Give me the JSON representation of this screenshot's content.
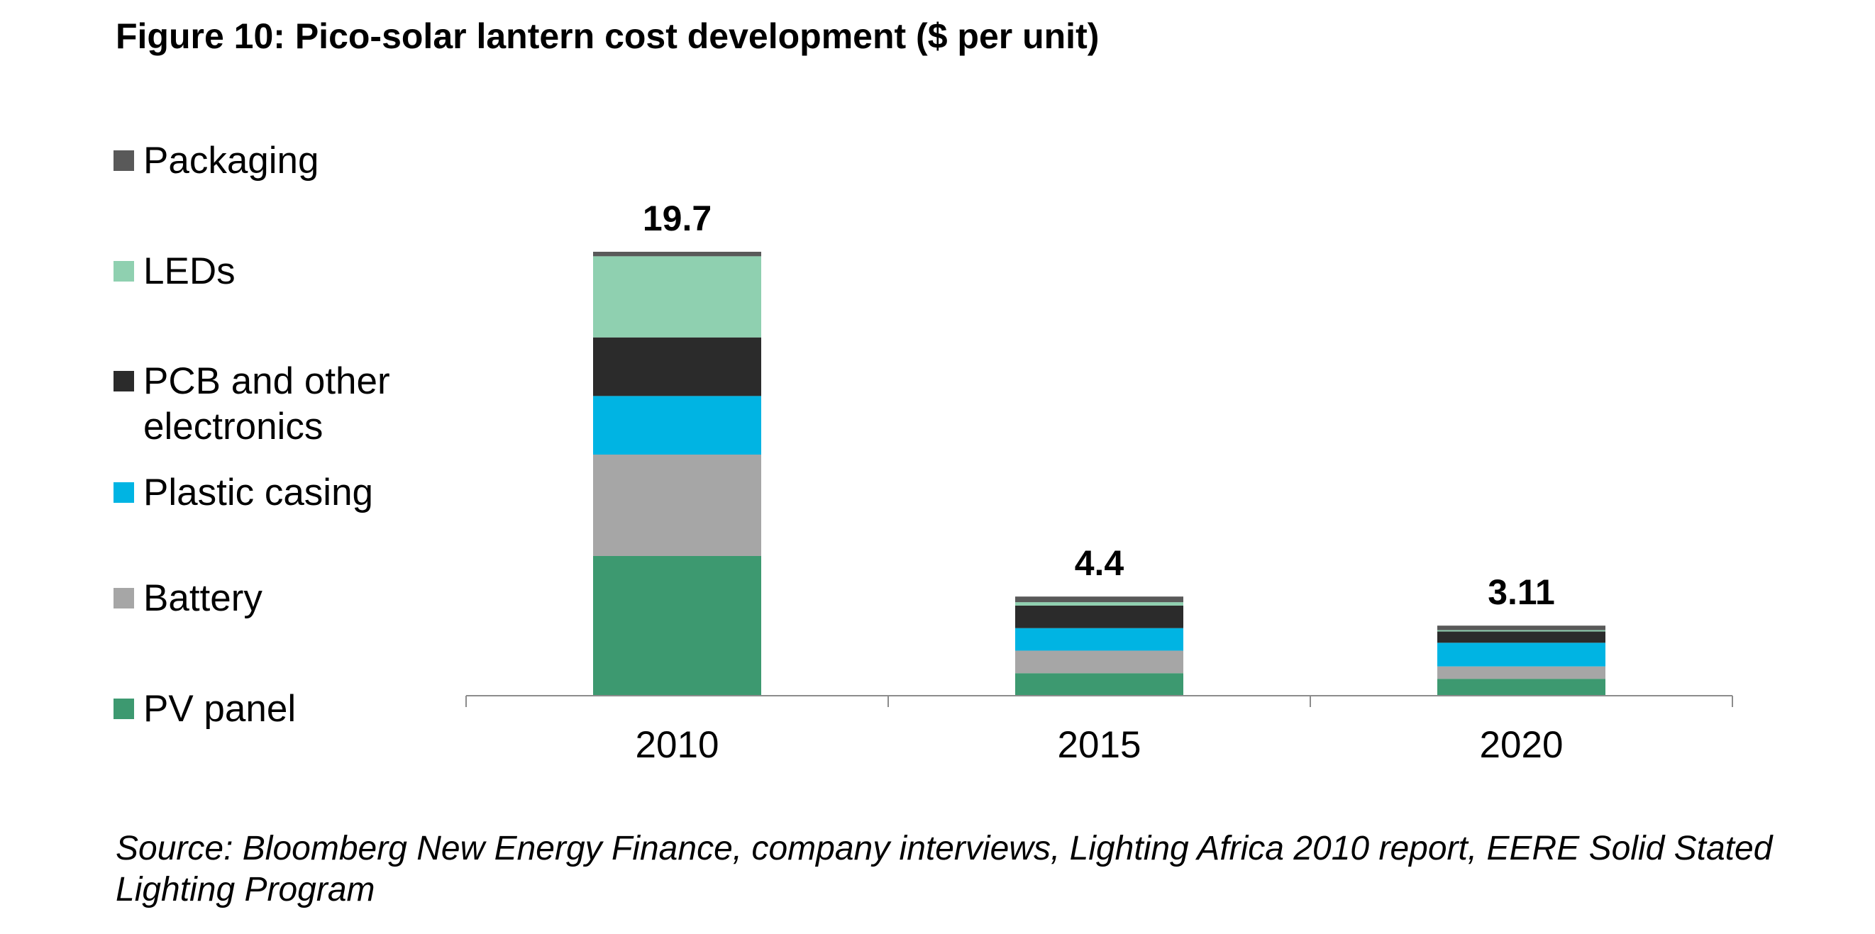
{
  "title": "Figure 10: Pico-solar lantern cost development ($ per unit)",
  "source": "Source: Bloomberg New Energy Finance, company interviews, Lighting Africa 2010 report, EERE Solid Stated Lighting Program",
  "chart_data": {
    "type": "bar",
    "stacked": true,
    "categories": [
      "2010",
      "2015",
      "2020"
    ],
    "totals": [
      "19.7",
      "4.4",
      "3.11"
    ],
    "ylim": [
      0,
      19.7
    ],
    "gridlines": false,
    "legend_position": "left",
    "series": [
      {
        "name": "PV panel",
        "color": "#3d9970",
        "values": [
          6.2,
          1.0,
          0.75
        ]
      },
      {
        "name": "Battery",
        "color": "#a6a6a6",
        "values": [
          4.5,
          1.0,
          0.55
        ]
      },
      {
        "name": "Plastic casing",
        "color": "#00b4e3",
        "values": [
          2.6,
          1.0,
          1.05
        ]
      },
      {
        "name": "PCB and other electronics",
        "color": "#2b2b2b",
        "values": [
          2.6,
          1.0,
          0.5
        ]
      },
      {
        "name": "LEDs",
        "color": "#8fd0b0",
        "values": [
          3.6,
          0.15,
          0.06
        ]
      },
      {
        "name": "Packaging",
        "color": "#595959",
        "values": [
          0.2,
          0.25,
          0.2
        ]
      }
    ]
  }
}
